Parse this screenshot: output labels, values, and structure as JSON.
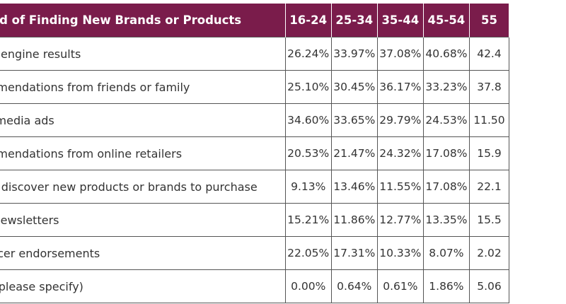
{
  "chart_data": {
    "type": "table",
    "columns": [
      "Method of Finding New Brands or Products",
      "16-24",
      "25-34",
      "35-44",
      "45-54",
      "55"
    ],
    "rows": [
      {
        "method": "Search engine results",
        "values": [
          "26.24%",
          "33.97%",
          "37.08%",
          "40.68%",
          "42.4"
        ]
      },
      {
        "method": "Recommendations from friends or family",
        "values": [
          "25.10%",
          "30.45%",
          "36.17%",
          "33.23%",
          "37.8"
        ]
      },
      {
        "method": "Social media ads",
        "values": [
          "34.60%",
          "33.65%",
          "29.79%",
          "24.53%",
          "11.50"
        ]
      },
      {
        "method": "Recommendations from online retailers",
        "values": [
          "20.53%",
          "21.47%",
          "24.32%",
          "17.08%",
          "15.9"
        ]
      },
      {
        "method": "I never discover new products or brands to purchase",
        "values": [
          "9.13%",
          "13.46%",
          "11.55%",
          "17.08%",
          "22.1"
        ]
      },
      {
        "method": "Email newsletters",
        "values": [
          "15.21%",
          "11.86%",
          "12.77%",
          "13.35%",
          "15.5"
        ]
      },
      {
        "method": "Influencer endorsements",
        "values": [
          "22.05%",
          "17.31%",
          "10.33%",
          "8.07%",
          "2.02"
        ]
      },
      {
        "method": "Other (please specify)",
        "values": [
          "0.00%",
          "0.64%",
          "0.61%",
          "1.86%",
          "5.06"
        ]
      }
    ]
  },
  "colors": {
    "header_background": "#7a1c4b",
    "header_text": "#ffffff",
    "grid_border": "#555555",
    "cell_text": "#333333"
  }
}
